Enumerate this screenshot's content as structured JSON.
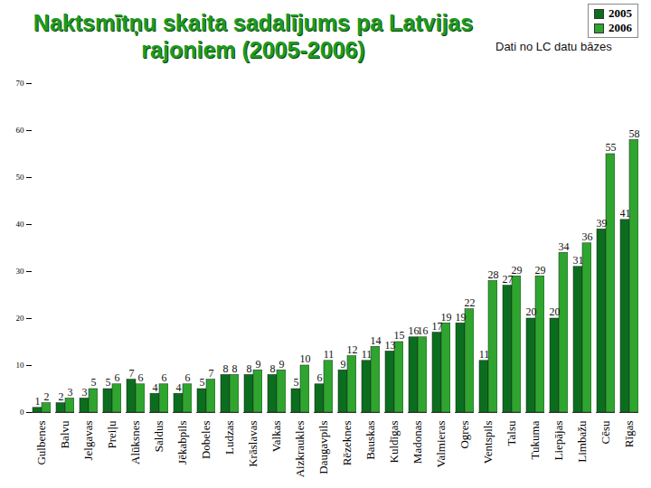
{
  "chart_data": {
    "type": "bar",
    "title": "Naktsmītņu skaita sadalījums pa Latvijas rajoniem (2005-2006)",
    "subtitle": "Dati no LC datu bāzes",
    "categories": [
      "Gulbenes",
      "Balvu",
      "Jelgavas",
      "Preiļu",
      "Alūksnes",
      "Saldus",
      "Jēkabpils",
      "Dobeles",
      "Ludzas",
      "Krāslavas",
      "Valkas",
      "Aizkraukles",
      "Daugavpils",
      "Rēzeknes",
      "Bauskas",
      "Kuldīgas",
      "Madonas",
      "Valmieras",
      "Ogres",
      "Ventspils",
      "Talsu",
      "Tukuma",
      "Liepājas",
      "Limbažu",
      "Cēsu",
      "Rīgas"
    ],
    "series": [
      {
        "name": "2005",
        "color": "#0b6e1e",
        "values": [
          1,
          2,
          3,
          5,
          7,
          4,
          4,
          5,
          8,
          8,
          8,
          5,
          6,
          9,
          11,
          13,
          16,
          17,
          19,
          11,
          27,
          20,
          20,
          31,
          39,
          41
        ]
      },
      {
        "name": "2006",
        "color": "#2fa52f",
        "values": [
          2,
          3,
          5,
          6,
          6,
          6,
          6,
          7,
          8,
          9,
          9,
          10,
          11,
          12,
          14,
          15,
          16,
          19,
          22,
          28,
          29,
          29,
          34,
          36,
          55,
          58
        ]
      }
    ],
    "ylim": [
      0,
      70
    ],
    "yticks": [
      0,
      10,
      20,
      30,
      40,
      50,
      60,
      70
    ],
    "grid": false,
    "legend": "top-right",
    "data_labels": true
  }
}
